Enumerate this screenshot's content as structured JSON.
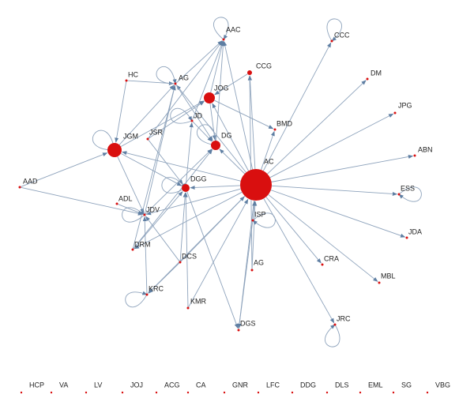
{
  "nodes": [
    "AAC",
    "CCC",
    "CCG",
    "DM",
    "HC",
    "AG",
    "JOG",
    "JPG",
    "JD",
    "BMD",
    "JGM",
    "JSR",
    "DG",
    "ABN",
    "AC",
    "AAD",
    "DGG",
    "ESS",
    "ADL",
    "JDV",
    "ISP",
    "JDA",
    "DRM",
    "DCS",
    "CRA",
    "AG",
    "MBL",
    "KRC",
    "KMR",
    "DGS",
    "JRC",
    "HCP",
    "VA",
    "LV",
    "JOJ",
    "ACG",
    "CA",
    "GNR",
    "LFC",
    "DDG",
    "DLS",
    "EML",
    "SG",
    "VBG"
  ]
}
